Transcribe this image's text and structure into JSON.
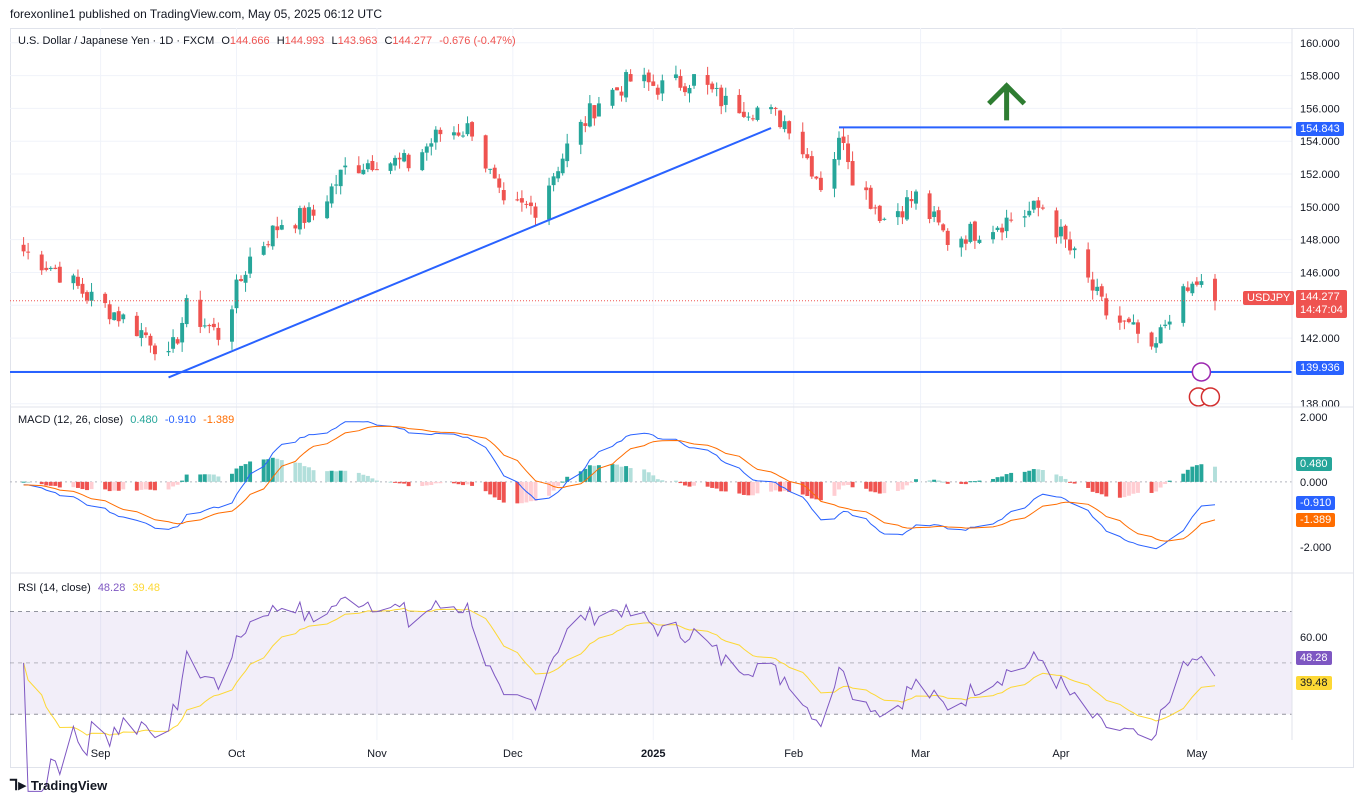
{
  "header": {
    "text": "forexonline1 published on TradingView.com, May 05, 2025 06:12 UTC"
  },
  "legend": {
    "symbol": "U.S. Dollar / Japanese Yen · 1D · FXCM",
    "o_label": "O",
    "o": "144.666",
    "h_label": "H",
    "h": "144.993",
    "l_label": "L",
    "l": "143.963",
    "c_label": "C",
    "c": "144.277",
    "change": "-0.676 (-0.47%)"
  },
  "macd_legend": {
    "name": "MACD (12, 26, close)",
    "hist": "0.480",
    "macd": "-0.910",
    "signal": "-1.389"
  },
  "rsi_legend": {
    "name": "RSI (14, close)",
    "rsi": "48.28",
    "ma": "39.48"
  },
  "tags": {
    "resistance": "154.843",
    "support": "139.936",
    "symbol_label": "USDJPY",
    "last_price": "144.277",
    "countdown": "14:47:04",
    "macd_hist": "0.480",
    "macd_line": "-0.910",
    "macd_signal": "-1.389",
    "rsi": "48.28",
    "rsi_ma": "39.48"
  },
  "footer": {
    "brand": "TradingView"
  },
  "colors": {
    "up": "#26a69a",
    "down": "#ef5350",
    "line": "#2962ff",
    "signal": "#ff6d00",
    "rsi": "#7e57c2",
    "rsi_ma": "#fdd835",
    "arrow": "#2e7d32"
  },
  "chart_data": {
    "type": "candlestick",
    "title": "U.S. Dollar / Japanese Yen · 1D · FXCM",
    "x_ticks": [
      "Sep",
      "Oct",
      "Nov",
      "Dec",
      "2025",
      "Feb",
      "Mar",
      "Apr",
      "May"
    ],
    "price_ticks": [
      "160.000",
      "158.000",
      "156.000",
      "154.000",
      "152.000",
      "150.000",
      "148.000",
      "146.000",
      "144.000",
      "142.000",
      "140.000",
      "138.000"
    ],
    "price_range": [
      137.8,
      160.9
    ],
    "horizontal_levels": [
      154.843,
      139.936
    ],
    "last_price": 144.277,
    "trendline": {
      "from": [
        "2024-09-16",
        139.6
      ],
      "to": [
        "2025-01-27",
        154.8
      ]
    },
    "annotations": [
      {
        "type": "up-arrow",
        "date": "2025-03-20",
        "price": 156.4
      }
    ],
    "closes": [
      {
        "date": "2024-08-15",
        "close": 147.3
      },
      {
        "date": "2024-08-22",
        "close": 146.2
      },
      {
        "date": "2024-08-29",
        "close": 144.6
      },
      {
        "date": "2024-09-05",
        "close": 143.4
      },
      {
        "date": "2024-09-12",
        "close": 142.0
      },
      {
        "date": "2024-09-16",
        "close": 140.6
      },
      {
        "date": "2024-09-20",
        "close": 143.8
      },
      {
        "date": "2024-09-27",
        "close": 142.2
      },
      {
        "date": "2024-10-04",
        "close": 146.9
      },
      {
        "date": "2024-10-11",
        "close": 149.1
      },
      {
        "date": "2024-10-18",
        "close": 149.5
      },
      {
        "date": "2024-10-25",
        "close": 152.3
      },
      {
        "date": "2024-11-01",
        "close": 152.9
      },
      {
        "date": "2024-11-08",
        "close": 152.6
      },
      {
        "date": "2024-11-15",
        "close": 154.5
      },
      {
        "date": "2024-11-22",
        "close": 154.8
      },
      {
        "date": "2024-11-29",
        "close": 149.8
      },
      {
        "date": "2024-12-06",
        "close": 150.0
      },
      {
        "date": "2024-12-13",
        "close": 153.6
      },
      {
        "date": "2024-12-20",
        "close": 156.5
      },
      {
        "date": "2024-12-27",
        "close": 157.7
      },
      {
        "date": "2025-01-03",
        "close": 157.3
      },
      {
        "date": "2025-01-10",
        "close": 157.8
      },
      {
        "date": "2025-01-17",
        "close": 156.3
      },
      {
        "date": "2025-01-24",
        "close": 156.0
      },
      {
        "date": "2025-01-31",
        "close": 155.1
      },
      {
        "date": "2025-02-07",
        "close": 151.4
      },
      {
        "date": "2025-02-12",
        "close": 154.4
      },
      {
        "date": "2025-02-14",
        "close": 152.0
      },
      {
        "date": "2025-02-21",
        "close": 149.3
      },
      {
        "date": "2025-02-28",
        "close": 150.6
      },
      {
        "date": "2025-03-07",
        "close": 148.0
      },
      {
        "date": "2025-03-14",
        "close": 148.6
      },
      {
        "date": "2025-03-21",
        "close": 149.3
      },
      {
        "date": "2025-03-28",
        "close": 150.0
      },
      {
        "date": "2025-04-04",
        "close": 146.9
      },
      {
        "date": "2025-04-11",
        "close": 143.5
      },
      {
        "date": "2025-04-18",
        "close": 142.2
      },
      {
        "date": "2025-04-21",
        "close": 140.8
      },
      {
        "date": "2025-04-25",
        "close": 143.6
      },
      {
        "date": "2025-05-01",
        "close": 145.4
      },
      {
        "date": "2025-05-05",
        "close": 144.277
      }
    ],
    "macd": {
      "ticks": [
        "2.000",
        "0.000",
        "-2.000"
      ],
      "range": [
        -2.8,
        2.3
      ],
      "last_macd": -0.91,
      "last_signal": -1.389,
      "last_hist": 0.48
    },
    "rsi": {
      "ticks": [
        "60.00"
      ],
      "range": [
        20,
        85
      ],
      "upper_band": 70,
      "lower_band": 30,
      "last_rsi": 48.28,
      "last_ma": 39.48
    }
  }
}
